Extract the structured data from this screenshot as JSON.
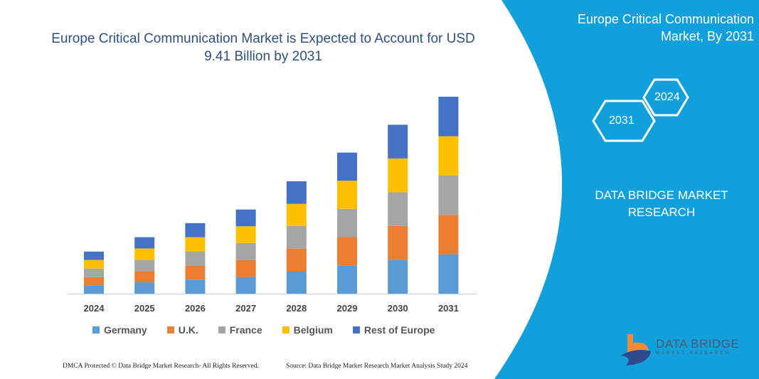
{
  "title": "Europe Critical Communication Market is Expected to Account for USD 9.41 Billion by 2031",
  "panel": {
    "title": "Europe Critical Communication Market, By 2031",
    "hex_years": [
      "2024",
      "2031"
    ],
    "brand": "DATA BRIDGE MARKET RESEARCH",
    "logo_text": "DATA BRIDGE",
    "logo_sub": "MARKET RESEARCH",
    "bg_color": "#12a0dc"
  },
  "footer": {
    "left": "DMCA Protected © Data Bridge Market Research- All Rights Reserved.",
    "right": "Source: Data Bridge Market Research Market Analysis Study 2024"
  },
  "chart_data": {
    "type": "bar",
    "stacked": true,
    "title": "",
    "xlabel": "",
    "ylabel": "",
    "legend_position": "bottom",
    "grid": false,
    "categories": [
      "2024",
      "2025",
      "2026",
      "2027",
      "2028",
      "2029",
      "2030",
      "2031"
    ],
    "series": [
      {
        "name": "Germany",
        "color": "#5b9bd5",
        "values": [
          0.38,
          0.54,
          0.67,
          0.8,
          1.07,
          1.35,
          1.61,
          1.88
        ]
      },
      {
        "name": "U.K.",
        "color": "#ed7d31",
        "values": [
          0.41,
          0.54,
          0.68,
          0.81,
          1.08,
          1.35,
          1.62,
          1.88
        ]
      },
      {
        "name": "France",
        "color": "#a5a5a5",
        "values": [
          0.41,
          0.54,
          0.68,
          0.81,
          1.08,
          1.35,
          1.61,
          1.89
        ]
      },
      {
        "name": "Belgium",
        "color": "#ffc000",
        "values": [
          0.41,
          0.54,
          0.67,
          0.8,
          1.06,
          1.35,
          1.62,
          1.87
        ]
      },
      {
        "name": "Rest of Europe",
        "color": "#4472c4",
        "values": [
          0.4,
          0.54,
          0.67,
          0.8,
          1.08,
          1.34,
          1.61,
          1.89
        ]
      }
    ]
  }
}
